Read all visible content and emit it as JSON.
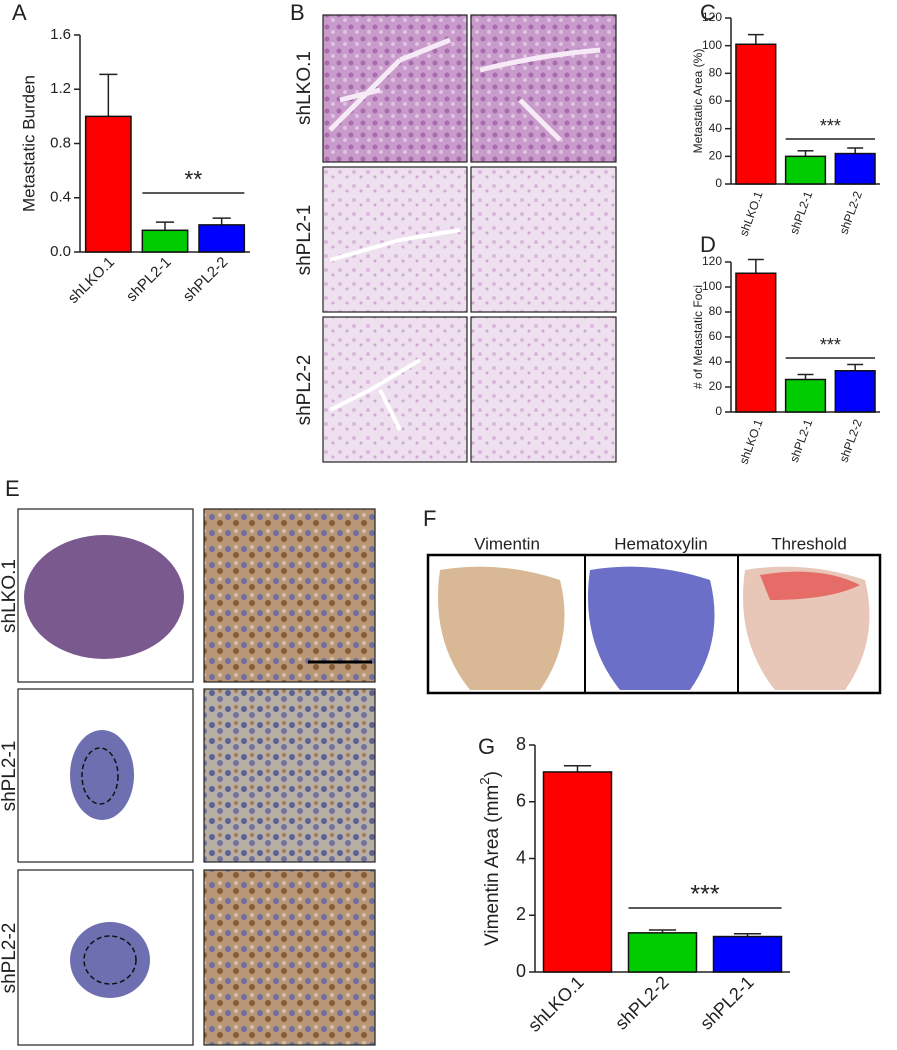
{
  "panel_labels": [
    "A",
    "B",
    "C",
    "D",
    "E",
    "F",
    "G"
  ],
  "panel_b": {
    "rows": [
      "shLKO.1",
      "shPL2-1",
      "shPL2-2"
    ]
  },
  "panel_e": {
    "rows": [
      "shLKO.1",
      "shPL2-1",
      "shPL2-2"
    ]
  },
  "panel_f": {
    "columns": [
      "Vimentin",
      "Hematoxylin",
      "Threshold"
    ]
  },
  "chart_data": [
    {
      "type": "bar",
      "ylabel": "Metastatic Burden",
      "categories": [
        "shLKO.1",
        "shPL2-1",
        "shPL2-2"
      ],
      "series": [
        {
          "colors": [
            "#ff0000",
            "#00cc00",
            "#0000ff"
          ],
          "values": [
            1.0,
            0.16,
            0.2
          ],
          "errors": [
            0.31,
            0.06,
            0.05
          ]
        }
      ],
      "ylim": [
        0,
        1.6
      ],
      "yticks": [
        {
          "value": 0,
          "label": "0.0"
        },
        0.4,
        0.8,
        1.2,
        1.6
      ],
      "significance": "**"
    },
    {
      "type": "bar",
      "ylabel": "Metastatic Area (%)",
      "categories": [
        "shLKO.1",
        "shPL2-1",
        "shPL2-2"
      ],
      "series": [
        {
          "colors": [
            "#ff0000",
            "#00cc00",
            "#0000ff"
          ],
          "values": [
            101,
            20,
            22
          ],
          "errors": [
            7,
            4,
            4
          ]
        }
      ],
      "ylim": [
        0,
        120
      ],
      "yticks": [
        0,
        20,
        40,
        60,
        80,
        100,
        120
      ],
      "significance": "***"
    },
    {
      "type": "bar",
      "ylabel": "# of Metastatic Foci",
      "categories": [
        "shLKO.1",
        "shPL2-1",
        "shPL2-2"
      ],
      "series": [
        {
          "colors": [
            "#ff0000",
            "#00cc00",
            "#0000ff"
          ],
          "values": [
            111,
            26,
            33
          ],
          "errors": [
            11,
            4,
            5
          ]
        }
      ],
      "ylim": [
        0,
        120
      ],
      "yticks": [
        0,
        20,
        40,
        60,
        80,
        100,
        120
      ],
      "significance": "***"
    },
    {
      "type": "bar",
      "ylabel": [
        "Vimentin Area (mm",
        "2",
        ")"
      ],
      "categories": [
        "shLKO.1",
        "shPL2-2",
        "shPL2-1"
      ],
      "series": [
        {
          "colors": [
            "#ff0000",
            "#00cc00",
            "#0000ff"
          ],
          "values": [
            7.05,
            1.38,
            1.25
          ],
          "errors": [
            0.22,
            0.1,
            0.1
          ]
        }
      ],
      "ylim": [
        0,
        8
      ],
      "yticks": [
        0,
        2,
        4,
        6,
        8
      ],
      "significance": "***"
    }
  ]
}
